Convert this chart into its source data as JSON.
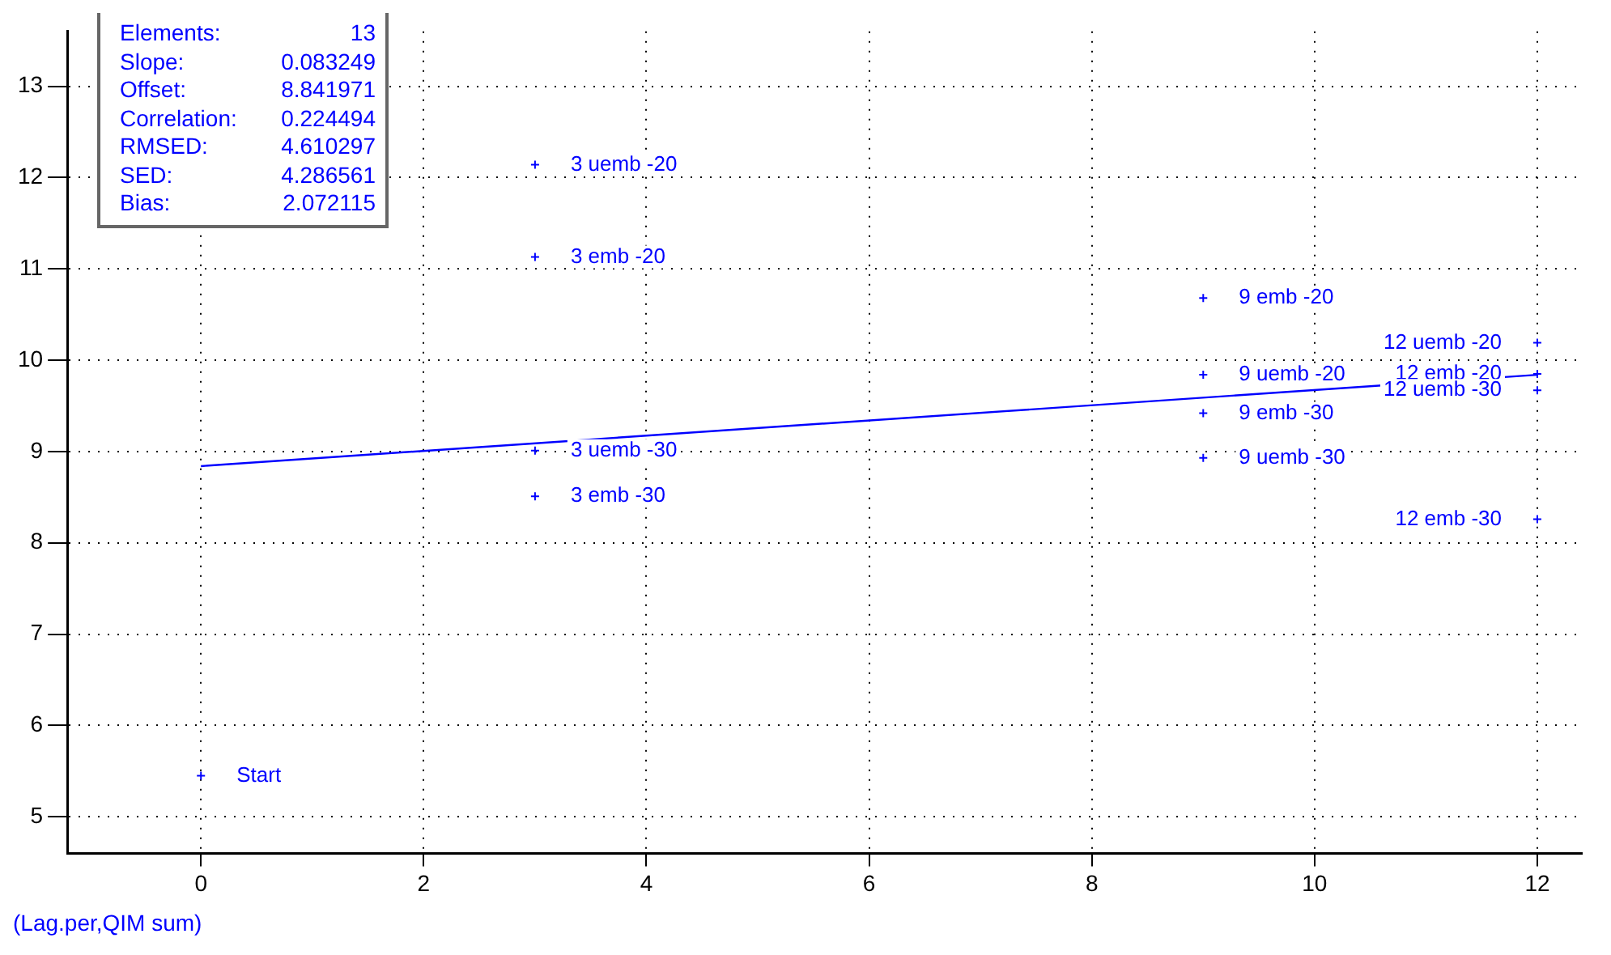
{
  "chart_data": {
    "type": "scatter",
    "xlabel": "(Lag.per,QIM sum)",
    "xlim": [
      -1.2,
      12.4
    ],
    "xticks": [
      0,
      2,
      4,
      6,
      8,
      10,
      12
    ],
    "ylim": [
      4.6,
      13.6
    ],
    "yticks": [
      5,
      6,
      7,
      8,
      9,
      10,
      11,
      12,
      13
    ],
    "grid": true,
    "series": [
      {
        "marker": "cross",
        "color": "#0000ff",
        "x": [
          0,
          3,
          3,
          3,
          3,
          9,
          9,
          9,
          9,
          12,
          12,
          12,
          12
        ],
        "values": [
          5.45,
          12.14,
          11.13,
          9.01,
          8.51,
          10.68,
          9.84,
          9.42,
          8.93,
          10.19,
          9.85,
          9.67,
          8.26
        ]
      },
      {
        "type": "line",
        "marker": "none",
        "color": "#0000ff",
        "x": [
          0,
          12
        ],
        "values": [
          8.84,
          9.84
        ]
      }
    ],
    "annotations": [
      "Elements: 13",
      "Slope: 0.083249",
      "Offset: 8.841971",
      "Correlation: 0.224494",
      "RMSED: 4.610297",
      "SED: 4.286561",
      "Bias: 2.072115",
      {
        "text": "Start",
        "x": 0,
        "y": 5.45
      },
      {
        "text": "3 uemb -20",
        "x": 3,
        "y": 12.14
      },
      {
        "text": "3 emb -20",
        "x": 3,
        "y": 11.13
      },
      {
        "text": "3 uemb -30",
        "x": 3,
        "y": 9.01
      },
      {
        "text": "3 emb -30",
        "x": 3,
        "y": 8.51
      },
      {
        "text": "9 emb -20",
        "x": 9,
        "y": 10.68
      },
      {
        "text": "9 uemb -20",
        "x": 9,
        "y": 9.84
      },
      {
        "text": "9 emb -30",
        "x": 9,
        "y": 9.42
      },
      {
        "text": "9 uemb -30",
        "x": 9,
        "y": 8.93
      },
      {
        "text": "12 uemb -20",
        "x": 12,
        "y": 10.19
      },
      {
        "text": "12 emb -20",
        "x": 12,
        "y": 9.85
      },
      {
        "text": "12 uemb -30",
        "x": 12,
        "y": 9.67
      },
      {
        "text": "12 emb -30",
        "x": 12,
        "y": 8.26
      }
    ]
  }
}
